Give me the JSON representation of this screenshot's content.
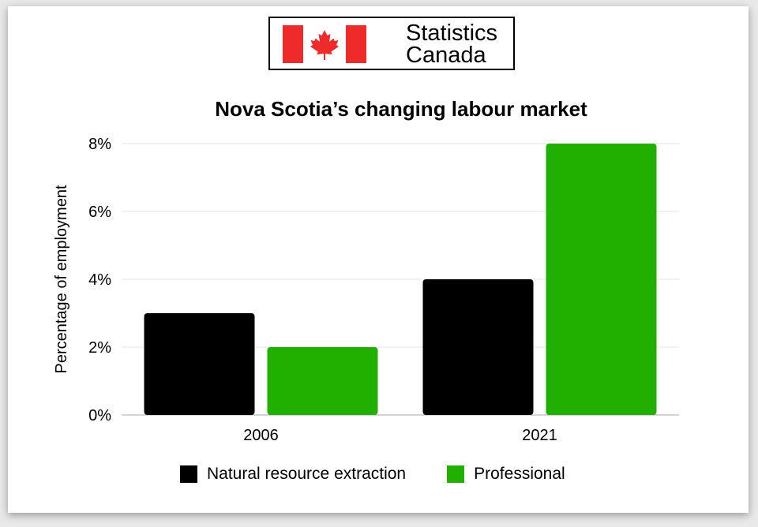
{
  "logo": {
    "line1": "Statistics",
    "line2": "Canada",
    "flag_colors": {
      "red": "#ee2a2a",
      "white": "#ffffff"
    }
  },
  "chart_data": {
    "type": "bar",
    "title": "Nova Scotia’s changing labour market",
    "ylabel": "Percentage of employment",
    "xlabel": "",
    "categories": [
      "2006",
      "2021"
    ],
    "series": [
      {
        "name": "Natural resource extraction",
        "values": [
          3,
          4
        ],
        "color": "#000000"
      },
      {
        "name": "Professional",
        "values": [
          2,
          8
        ],
        "color": "#21b000"
      }
    ],
    "ylim": [
      0,
      8
    ],
    "yticks": [
      0,
      2,
      4,
      6,
      8
    ],
    "ytick_labels": [
      "0%",
      "2%",
      "4%",
      "6%",
      "8%"
    ],
    "grid": true,
    "legend_position": "bottom"
  }
}
